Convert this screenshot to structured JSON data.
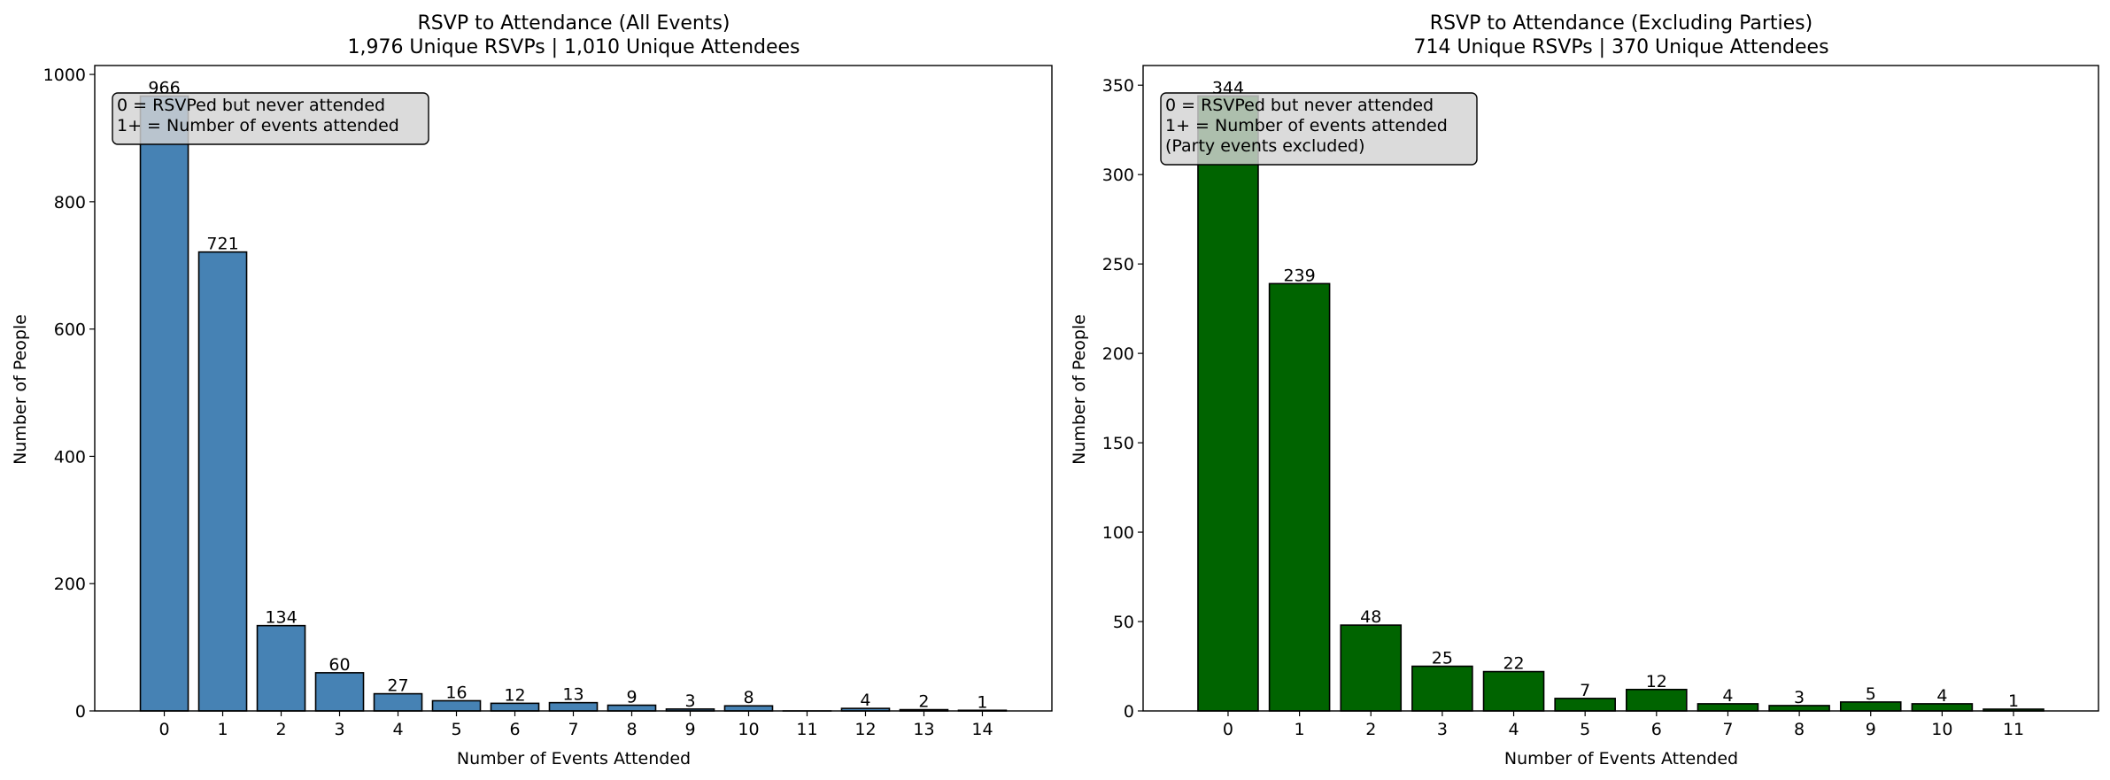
{
  "chart_data": [
    {
      "type": "bar",
      "title": "RSVP to Attendance (All Events)",
      "subtitle": "1,976 Unique RSVPs | 1,010 Unique Attendees",
      "xlabel": "Number of Events Attended",
      "ylabel": "Number of People",
      "categories": [
        "0",
        "1",
        "2",
        "3",
        "4",
        "5",
        "6",
        "7",
        "8",
        "9",
        "10",
        "11",
        "12",
        "13",
        "14"
      ],
      "values": [
        966,
        721,
        134,
        60,
        27,
        16,
        12,
        13,
        9,
        3,
        8,
        0,
        4,
        2,
        1
      ],
      "data_labels": [
        "966",
        "721",
        "134",
        "60",
        "27",
        "16",
        "12",
        "13",
        "9",
        "3",
        "8",
        "",
        "4",
        "2",
        "1"
      ],
      "yticks": [
        "0",
        "200",
        "400",
        "600",
        "800",
        "1000"
      ],
      "ylim": [
        0,
        1014
      ],
      "bar_color": "#4682b4",
      "annotation": [
        "0 = RSVPed but never attended",
        "1+ = Number of events attended"
      ],
      "annotation_position": "top-left",
      "grid": false
    },
    {
      "type": "bar",
      "title": "RSVP to Attendance (Excluding Parties)",
      "subtitle": "714 Unique RSVPs | 370 Unique Attendees",
      "xlabel": "Number of Events Attended",
      "ylabel": "Number of People",
      "categories": [
        "0",
        "1",
        "2",
        "3",
        "4",
        "5",
        "6",
        "7",
        "8",
        "9",
        "10",
        "11"
      ],
      "values": [
        344,
        239,
        48,
        25,
        22,
        7,
        12,
        4,
        3,
        5,
        4,
        1
      ],
      "data_labels": [
        "344",
        "239",
        "48",
        "25",
        "22",
        "7",
        "12",
        "4",
        "3",
        "5",
        "4",
        "1"
      ],
      "yticks": [
        "0",
        "50",
        "100",
        "150",
        "200",
        "250",
        "300",
        "350"
      ],
      "ylim": [
        0,
        361
      ],
      "bar_color": "#006400",
      "annotation": [
        "0 = RSVPed but never attended",
        "1+ = Number of events attended",
        "(Party events excluded)"
      ],
      "annotation_position": "top-left",
      "grid": false
    }
  ]
}
